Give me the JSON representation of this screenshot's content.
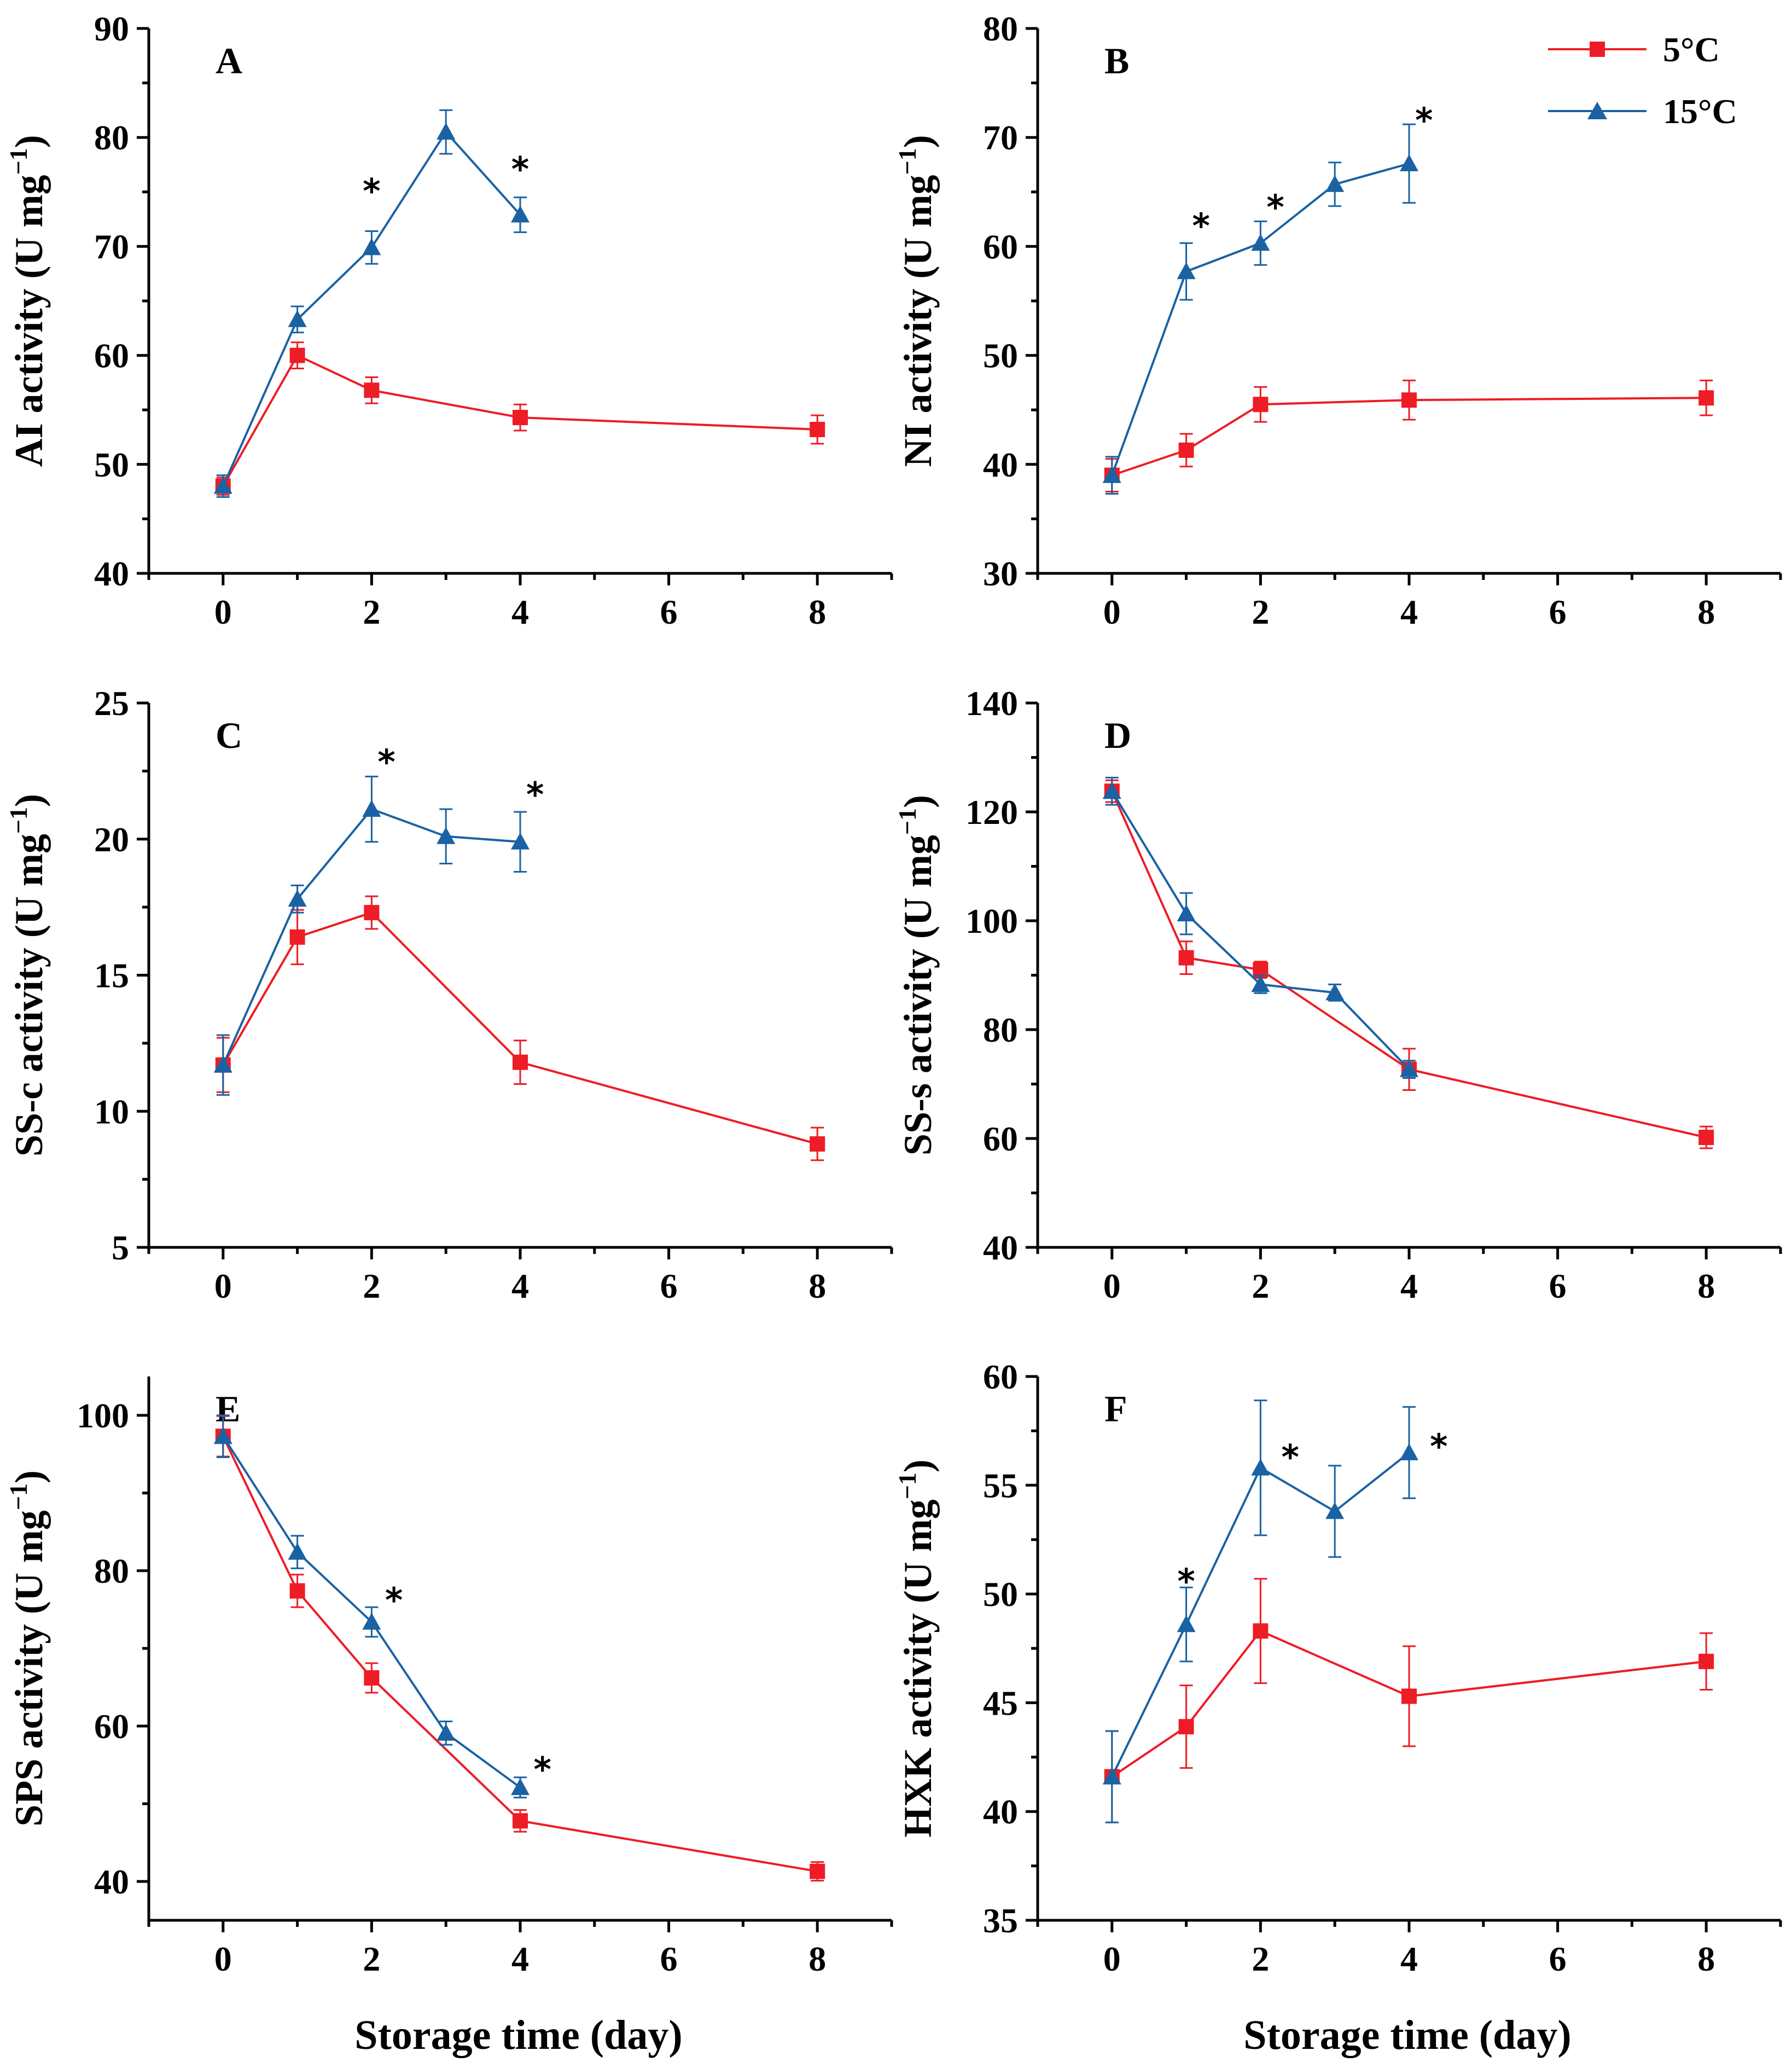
{
  "figure": {
    "xlabel": "Storage time (day)",
    "legend": [
      {
        "name": "5°C",
        "color": "#ee1c25",
        "marker": "square"
      },
      {
        "name": "15°C",
        "color": "#1a62a4",
        "marker": "triangle"
      }
    ]
  },
  "chart_data": [
    {
      "type": "line",
      "panel": "A",
      "ylabel": "AI activity (U mg",
      "ylabel_sup": "−1",
      "ylabel_close": ")",
      "xlim": [
        -1,
        9
      ],
      "xticks": [
        0,
        2,
        4,
        6,
        8
      ],
      "ylim": [
        40,
        90
      ],
      "yticks": [
        40,
        50,
        60,
        70,
        80,
        90
      ],
      "series": [
        {
          "name": "5°C",
          "x": [
            0,
            1,
            2,
            4,
            8
          ],
          "y": [
            48.0,
            60.0,
            56.8,
            54.3,
            53.2
          ],
          "err": [
            0.8,
            1.2,
            1.2,
            1.2,
            1.3
          ]
        },
        {
          "name": "15°C",
          "x": [
            0,
            1,
            2,
            3,
            4
          ],
          "y": [
            48.0,
            63.3,
            69.9,
            80.5,
            72.9
          ],
          "err": [
            1.0,
            1.2,
            1.5,
            2.0,
            1.6
          ]
        }
      ],
      "significance": [
        {
          "x": 2,
          "y": 75.5,
          "label": "*"
        },
        {
          "x": 4,
          "y": 77.5,
          "label": "*"
        }
      ]
    },
    {
      "type": "line",
      "panel": "B",
      "ylabel": "NI activity (U mg",
      "ylabel_sup": "−1",
      "ylabel_close": ")",
      "xlim": [
        -1,
        9
      ],
      "xticks": [
        0,
        2,
        4,
        6,
        8
      ],
      "ylim": [
        30,
        80
      ],
      "yticks": [
        30,
        40,
        50,
        60,
        70,
        80
      ],
      "series": [
        {
          "name": "5°C",
          "x": [
            0,
            1,
            2,
            4,
            8
          ],
          "y": [
            39.0,
            41.3,
            45.5,
            45.9,
            46.1
          ],
          "err": [
            1.5,
            1.5,
            1.6,
            1.8,
            1.6
          ]
        },
        {
          "name": "15°C",
          "x": [
            0,
            1,
            2,
            3,
            4
          ],
          "y": [
            39.0,
            57.7,
            60.3,
            65.7,
            67.6
          ],
          "err": [
            1.7,
            2.6,
            2.0,
            2.0,
            3.6
          ]
        }
      ],
      "significance": [
        {
          "x": 1.2,
          "y": 62.3,
          "label": "*"
        },
        {
          "x": 2.2,
          "y": 64.0,
          "label": "*"
        },
        {
          "x": 4.2,
          "y": 72.0,
          "label": "*"
        }
      ]
    },
    {
      "type": "line",
      "panel": "C",
      "ylabel": "SS-c activity (U mg",
      "ylabel_sup": "−1",
      "ylabel_close": ")",
      "xlim": [
        -1,
        9
      ],
      "xticks": [
        0,
        2,
        4,
        6,
        8
      ],
      "ylim": [
        5,
        25
      ],
      "yticks": [
        5,
        10,
        15,
        20,
        25
      ],
      "series": [
        {
          "name": "5°C",
          "x": [
            0,
            1,
            2,
            4,
            8
          ],
          "y": [
            11.7,
            16.4,
            17.3,
            11.8,
            8.8
          ],
          "err": [
            1.0,
            1.0,
            0.6,
            0.8,
            0.6
          ]
        },
        {
          "name": "15°C",
          "x": [
            0,
            1,
            2,
            3,
            4
          ],
          "y": [
            11.7,
            17.8,
            21.1,
            20.1,
            19.9
          ],
          "err": [
            1.1,
            0.5,
            1.2,
            1.0,
            1.1
          ]
        }
      ],
      "significance": [
        {
          "x": 2.2,
          "y": 23.0,
          "label": "*"
        },
        {
          "x": 4.2,
          "y": 21.8,
          "label": "*"
        }
      ]
    },
    {
      "type": "line",
      "panel": "D",
      "ylabel": "SS-s activity (U mg",
      "ylabel_sup": "−1",
      "ylabel_close": ")",
      "xlim": [
        -1,
        9
      ],
      "xticks": [
        0,
        2,
        4,
        6,
        8
      ],
      "ylim": [
        40,
        140
      ],
      "yticks": [
        40,
        60,
        80,
        100,
        120,
        140
      ],
      "series": [
        {
          "name": "5°C",
          "x": [
            0,
            1,
            2,
            4,
            8
          ],
          "y": [
            123.8,
            93.2,
            91.0,
            72.7,
            60.2
          ],
          "err": [
            2.0,
            3.0,
            1.5,
            3.8,
            2.0
          ]
        },
        {
          "name": "15°C",
          "x": [
            0,
            1,
            2,
            3,
            4
          ],
          "y": [
            123.8,
            101.3,
            88.3,
            86.8,
            72.7
          ],
          "err": [
            2.5,
            3.8,
            1.6,
            1.5,
            1.6
          ]
        }
      ],
      "significance": []
    },
    {
      "type": "line",
      "panel": "E",
      "ylabel": "SPS activity (U mg",
      "ylabel_sup": "−1",
      "ylabel_close": ")",
      "xlim": [
        -1,
        9
      ],
      "xticks": [
        0,
        2,
        4,
        6,
        8
      ],
      "ylim": [
        35,
        105
      ],
      "yticks": [
        40,
        60,
        80,
        100
      ],
      "series": [
        {
          "name": "5°C",
          "x": [
            0,
            1,
            2,
            4,
            8
          ],
          "y": [
            97.3,
            77.4,
            66.2,
            47.8,
            41.3
          ],
          "err": [
            2.6,
            2.1,
            1.9,
            1.4,
            1.2
          ]
        },
        {
          "name": "15°C",
          "x": [
            0,
            1,
            2,
            3,
            4
          ],
          "y": [
            97.3,
            82.4,
            73.4,
            59.1,
            52.1
          ],
          "err": [
            2.7,
            2.1,
            1.9,
            1.5,
            1.3
          ]
        }
      ],
      "significance": [
        {
          "x": 2.3,
          "y": 76.8,
          "label": "*"
        },
        {
          "x": 4.3,
          "y": 55.0,
          "label": "*"
        }
      ]
    },
    {
      "type": "line",
      "panel": "F",
      "ylabel": "HXK activity (U mg",
      "ylabel_sup": "−1",
      "ylabel_close": ")",
      "xlim": [
        -1,
        9
      ],
      "xticks": [
        0,
        2,
        4,
        6,
        8
      ],
      "ylim": [
        35,
        60
      ],
      "yticks": [
        35,
        40,
        45,
        50,
        55,
        60
      ],
      "series": [
        {
          "name": "5°C",
          "x": [
            0,
            1,
            2,
            4,
            8
          ],
          "y": [
            41.6,
            43.9,
            48.3,
            45.3,
            46.9
          ],
          "err": [
            2.1,
            1.9,
            2.4,
            2.3,
            1.3
          ]
        },
        {
          "name": "15°C",
          "x": [
            0,
            1,
            2,
            3,
            4
          ],
          "y": [
            41.6,
            48.6,
            55.8,
            53.8,
            56.5
          ],
          "err": [
            2.1,
            1.7,
            3.1,
            2.1,
            2.1
          ]
        }
      ],
      "significance": [
        {
          "x": 1.0,
          "y": 50.8,
          "label": "*"
        },
        {
          "x": 2.4,
          "y": 56.5,
          "label": "*"
        },
        {
          "x": 4.4,
          "y": 57.0,
          "label": "*"
        }
      ]
    }
  ]
}
